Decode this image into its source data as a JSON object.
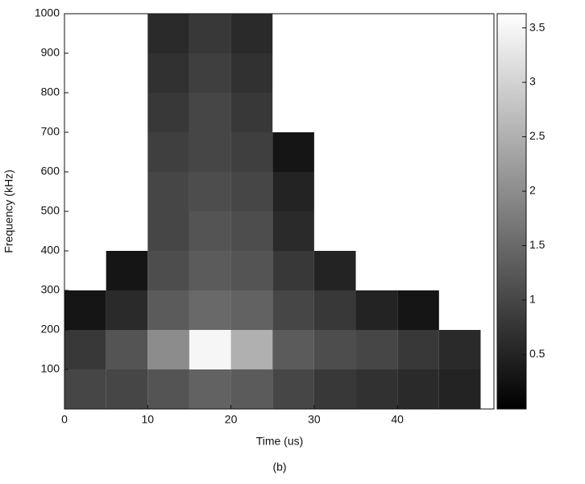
{
  "chart_data": {
    "type": "contour",
    "xlabel": "Time (us)",
    "ylabel": "Frequency (kHz)",
    "caption": "(b)",
    "xlim": [
      0,
      51.6
    ],
    "xticks": [
      0,
      10,
      20,
      30,
      40
    ],
    "ylim": [
      0,
      1000
    ],
    "yticks": [
      100,
      200,
      300,
      400,
      500,
      600,
      700,
      800,
      900,
      1000
    ],
    "x": [
      2.5,
      7.5,
      12.5,
      17.5,
      22.5,
      27.5,
      32.5,
      37.5,
      42.5,
      47.5
    ],
    "y": [
      50,
      150,
      250,
      350,
      450,
      550,
      650,
      750,
      850,
      950
    ],
    "z": [
      [
        1.0,
        1.0,
        1.2,
        1.4,
        1.3,
        1.0,
        0.8,
        0.7,
        0.6,
        0.5
      ],
      [
        0.8,
        1.2,
        2.0,
        3.5,
        2.5,
        1.3,
        1.1,
        1.0,
        0.8,
        0.6
      ],
      [
        0.3,
        0.6,
        1.3,
        1.5,
        1.4,
        1.0,
        0.8,
        0.5,
        0.3,
        null
      ],
      [
        null,
        0.3,
        1.1,
        1.3,
        1.2,
        0.8,
        0.5,
        null,
        null,
        null
      ],
      [
        null,
        null,
        1.0,
        1.2,
        1.1,
        0.6,
        null,
        null,
        null,
        null
      ],
      [
        null,
        null,
        1.0,
        1.1,
        1.0,
        0.5,
        null,
        null,
        null,
        null
      ],
      [
        null,
        null,
        0.9,
        1.0,
        0.9,
        0.3,
        null,
        null,
        null,
        null
      ],
      [
        null,
        null,
        0.8,
        1.0,
        0.8,
        null,
        null,
        null,
        null,
        null
      ],
      [
        null,
        null,
        0.7,
        0.9,
        0.7,
        null,
        null,
        null,
        null,
        null
      ],
      [
        null,
        null,
        0.6,
        0.8,
        0.6,
        null,
        null,
        null,
        null,
        null
      ]
    ],
    "clim": [
      0,
      3.63
    ],
    "cticks": [
      0.5,
      1,
      1.5,
      2,
      2.5,
      3,
      3.5
    ]
  }
}
